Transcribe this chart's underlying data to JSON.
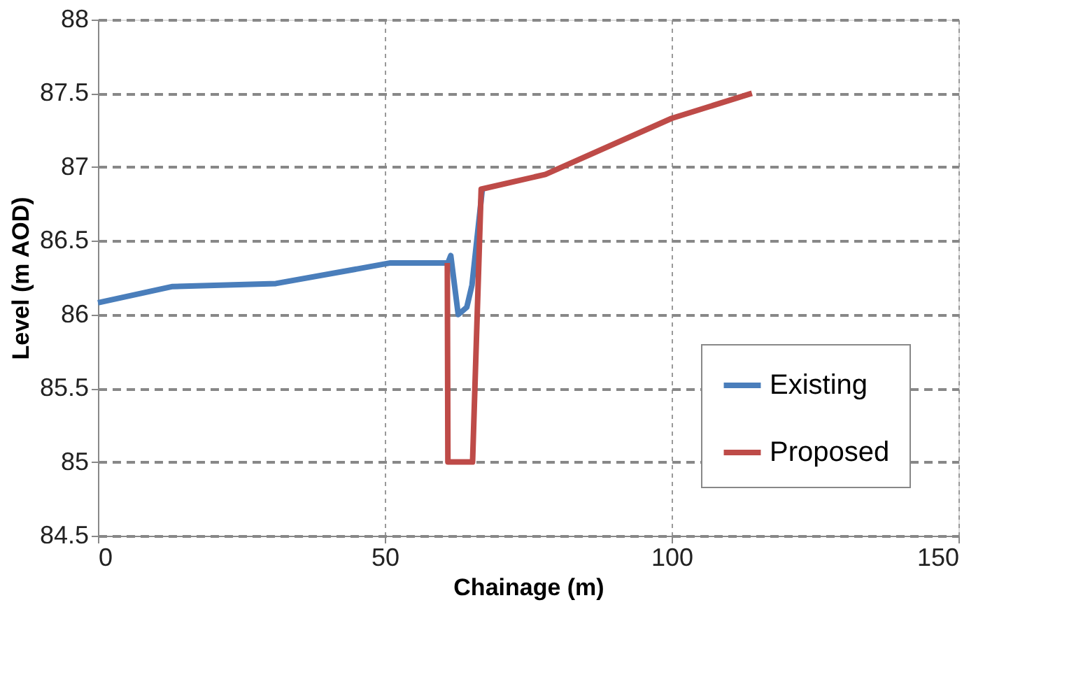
{
  "chart_data": {
    "type": "line",
    "xlabel": "Chainage (m)",
    "ylabel": "Level (m AOD)",
    "xlim": [
      0,
      150
    ],
    "xticks": [
      0,
      50,
      100,
      150
    ],
    "ylim": [
      84.5,
      88
    ],
    "yticks": [
      84.5,
      85,
      85.5,
      86,
      86.5,
      87,
      87.5,
      88
    ],
    "grid": true,
    "legend": "bottom right",
    "marker": "none",
    "line_style": "solid",
    "series": [
      {
        "name": "Existing",
        "color": "#4a7ebb",
        "x": [
          0,
          13,
          31,
          51,
          61,
          61.5,
          62.8,
          64.3,
          65.2,
          67
        ],
        "values": [
          86.08,
          86.19,
          86.21,
          86.35,
          86.35,
          86.4,
          86.0,
          86.05,
          86.2,
          86.85
        ]
      },
      {
        "name": "Proposed",
        "color": "#be4b48",
        "x": [
          60.9,
          61,
          65.3,
          66.8,
          78,
          100,
          114
        ],
        "values": [
          86.35,
          85,
          85,
          86.85,
          86.95,
          87.33,
          87.5
        ]
      }
    ]
  }
}
